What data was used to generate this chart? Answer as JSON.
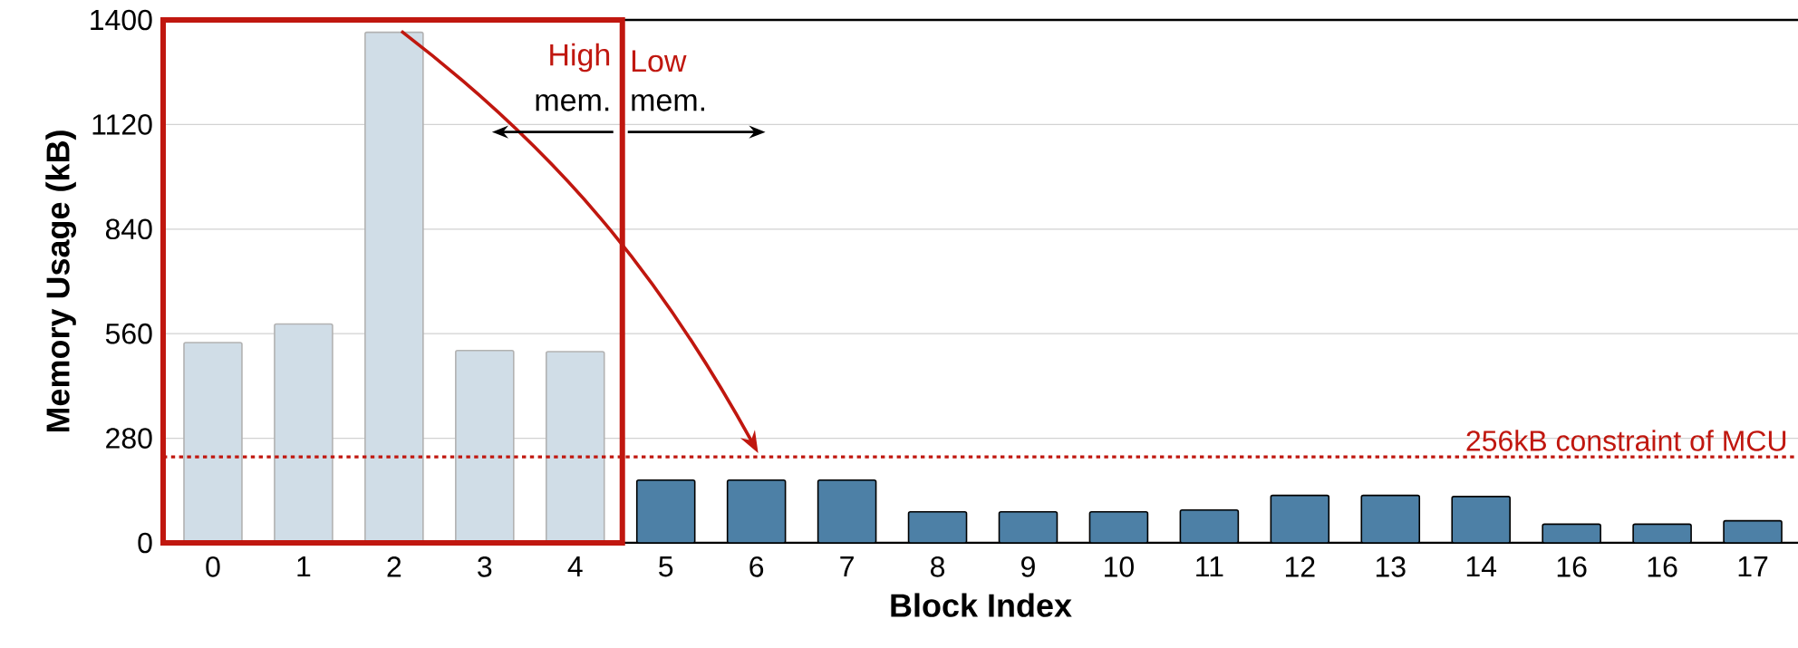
{
  "chart_data": {
    "type": "bar",
    "xlabel": "Block Index",
    "ylabel": "Memory Usage (kB)",
    "categories": [
      "0",
      "1",
      "2",
      "3",
      "4",
      "5",
      "6",
      "7",
      "8",
      "9",
      "10",
      "11",
      "12",
      "13",
      "14",
      "16",
      "16",
      "17"
    ],
    "values": [
      536,
      586,
      1367,
      515,
      512,
      168,
      168,
      168,
      83,
      83,
      83,
      88,
      127,
      127,
      124,
      50,
      50,
      59
    ],
    "colors": [
      "#d0dde7",
      "#d0dde7",
      "#d0dde7",
      "#d0dde7",
      "#d0dde7",
      "#4d80a6",
      "#4d80a6",
      "#4d80a6",
      "#4d80a6",
      "#4d80a6",
      "#4d80a6",
      "#4d80a6",
      "#4d80a6",
      "#4d80a6",
      "#4d80a6",
      "#4d80a6",
      "#4d80a6",
      "#4d80a6"
    ],
    "ylim": [
      0,
      1400
    ],
    "yticks": [
      0,
      280,
      560,
      840,
      1120,
      1400
    ],
    "grid": "y",
    "ref_lines": [
      {
        "axis": "y",
        "value": 230,
        "label": "256kB constraint of MCU",
        "color": "#c0170f",
        "line_style": "dotted"
      }
    ],
    "annotations": [
      "High",
      "mem.",
      "Low",
      "mem."
    ]
  }
}
